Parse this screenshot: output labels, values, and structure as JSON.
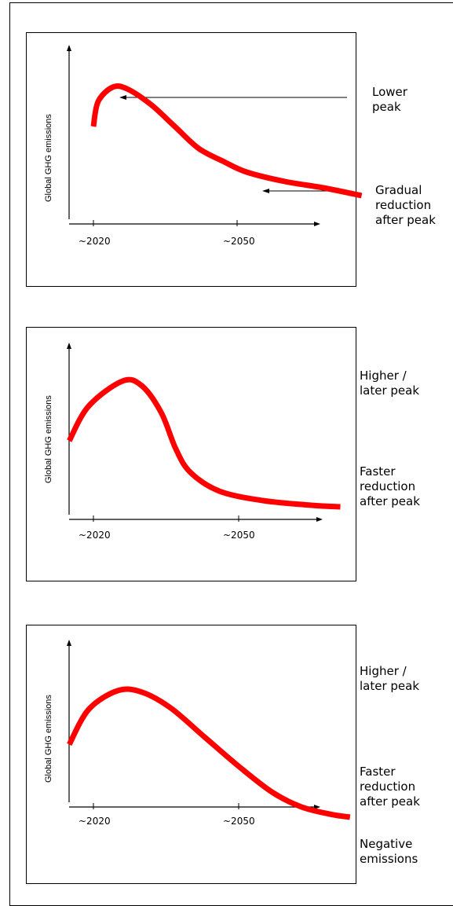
{
  "chart_data": [
    {
      "type": "line",
      "ylabel": "Global GHG emissions",
      "x_ticks": [
        "~2020",
        "~2050"
      ],
      "series": [
        {
          "points": [
            [
              2020,
              0.62
            ],
            [
              2021,
              0.78
            ],
            [
              2024,
              0.87
            ],
            [
              2027,
              0.86
            ],
            [
              2032,
              0.76
            ],
            [
              2037,
              0.62
            ],
            [
              2042,
              0.48
            ],
            [
              2047,
              0.4
            ],
            [
              2052,
              0.33
            ],
            [
              2060,
              0.27
            ],
            [
              2068,
              0.23
            ],
            [
              2076,
              0.18
            ]
          ]
        }
      ],
      "annotations": [
        {
          "text": "Lower\npeak"
        },
        {
          "text": "Gradual\nreduction\nafter peak"
        }
      ]
    },
    {
      "type": "line",
      "ylabel": "Global GHG emissions",
      "x_ticks": [
        "~2020",
        "~2050"
      ],
      "series": [
        {
          "points": [
            [
              2015,
              0.5
            ],
            [
              2019,
              0.72
            ],
            [
              2026,
              0.88
            ],
            [
              2030,
              0.85
            ],
            [
              2034,
              0.68
            ],
            [
              2037,
              0.45
            ],
            [
              2040,
              0.3
            ],
            [
              2046,
              0.18
            ],
            [
              2055,
              0.12
            ],
            [
              2065,
              0.09
            ],
            [
              2071,
              0.08
            ]
          ]
        }
      ],
      "annotations": [
        {
          "text": "Higher /\nlater peak"
        },
        {
          "text": "Faster\nreduction\nafter peak"
        }
      ]
    },
    {
      "type": "line",
      "ylabel": "Global GHG emissions",
      "x_ticks": [
        "~2020",
        "~2050"
      ],
      "series": [
        {
          "points": [
            [
              2015,
              0.43
            ],
            [
              2019,
              0.67
            ],
            [
              2025,
              0.8
            ],
            [
              2030,
              0.79
            ],
            [
              2036,
              0.68
            ],
            [
              2043,
              0.48
            ],
            [
              2050,
              0.28
            ],
            [
              2057,
              0.1
            ],
            [
              2063,
              0.0
            ],
            [
              2069,
              -0.05
            ],
            [
              2073,
              -0.07
            ]
          ]
        }
      ],
      "annotations": [
        {
          "text": "Higher /\nlater peak"
        },
        {
          "text": "Faster\nreduction\nafter peak"
        },
        {
          "text": "Negative\nemissions"
        }
      ]
    }
  ]
}
